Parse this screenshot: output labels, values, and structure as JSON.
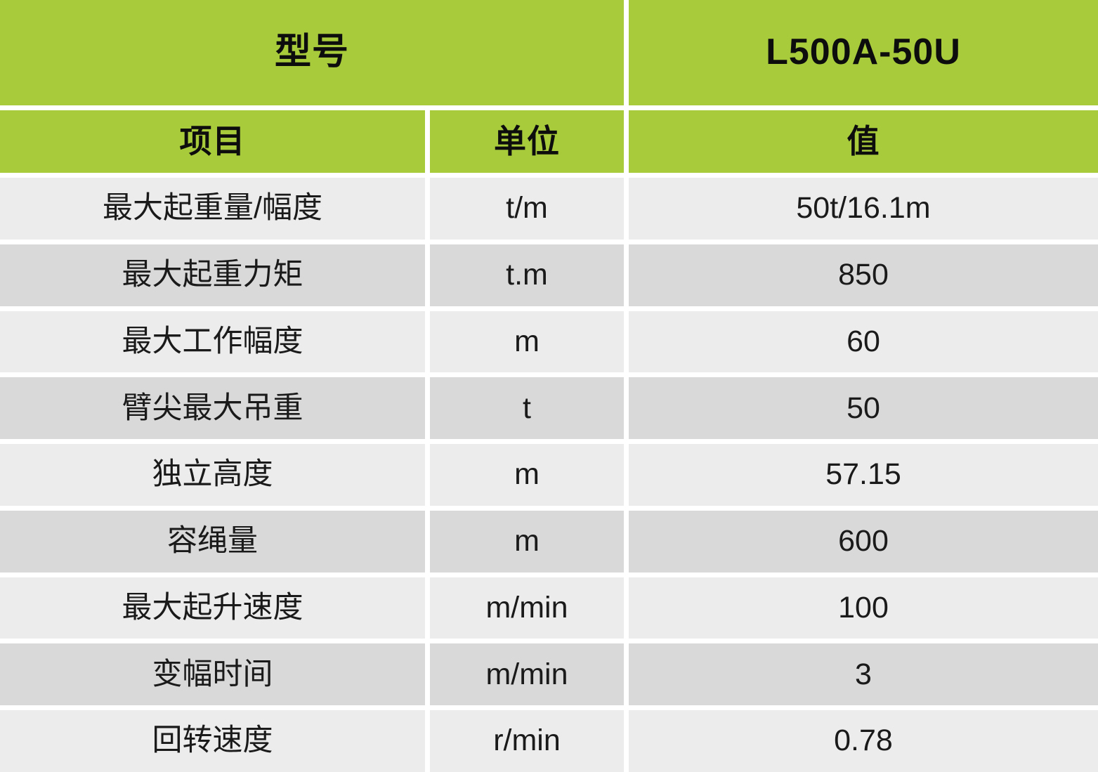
{
  "colors": {
    "header_green": "#a7cb3b",
    "row_light": "#ececec",
    "row_dark": "#d9d9d9",
    "gutter_white": "#ffffff",
    "header_text": "#0d0d0d",
    "data_text": "#1a1a1a"
  },
  "chart_data": {
    "type": "table",
    "model_header": {
      "label": "型号",
      "value": "L500A-50U"
    },
    "columns": [
      "项目",
      "单位",
      "值"
    ],
    "rows": [
      [
        "最大起重量/幅度",
        "t/m",
        "50t/16.1m"
      ],
      [
        "最大起重力矩",
        "t.m",
        "850"
      ],
      [
        "最大工作幅度",
        "m",
        "60"
      ],
      [
        "臂尖最大吊重",
        "t",
        "50"
      ],
      [
        "独立高度",
        "m",
        "57.15"
      ],
      [
        "容绳量",
        "m",
        "600"
      ],
      [
        "最大起升速度",
        "m/min",
        "100"
      ],
      [
        "变幅时间",
        "m/min",
        "3"
      ],
      [
        "回转速度",
        "r/min",
        "0.78"
      ]
    ]
  }
}
